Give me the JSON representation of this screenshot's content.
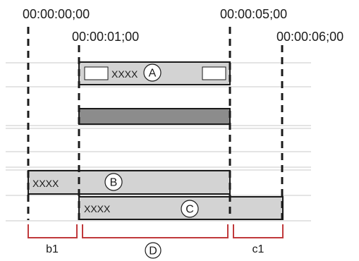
{
  "timecodes": {
    "t0": "00:00:00;00",
    "t1": "00:00:01;00",
    "t5": "00:00:05;00",
    "t6": "00:00:06;00"
  },
  "clips": {
    "a": {
      "text": "XXXX",
      "callout": "A"
    },
    "b": {
      "text": "XXXX",
      "callout": "B"
    },
    "c": {
      "text": "XXXX",
      "callout": "C"
    }
  },
  "brackets": {
    "b1": "b1",
    "d": "D",
    "c1": "c1"
  },
  "colors": {
    "clip_fill": "#d3d3d3",
    "clip_dark": "#8c8c8c",
    "bracket": "#c0393b",
    "track_line": "#c8c8c8"
  }
}
